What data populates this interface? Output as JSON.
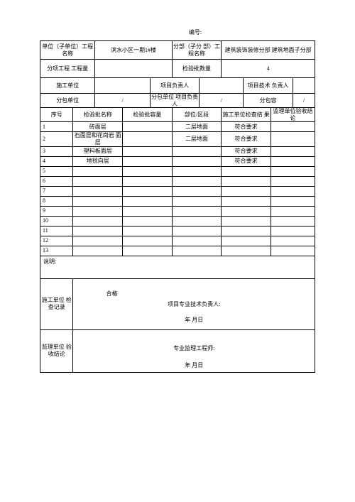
{
  "header": {
    "doc_number_label": "编号:"
  },
  "section1": {
    "unit_project_label": "单位（子单位）工程名称",
    "unit_project_value": "滨水小区一期1#楼",
    "sub_division_label": "分部（子分 部）工程名称",
    "sub_division_value": "建筑装饰装修分部 建筑地面子分部"
  },
  "section_qty": {
    "sub_item_qty_label": "分项工程 工程量",
    "sub_item_qty_value": "",
    "insp_batch_count_label": "检验批数量",
    "insp_batch_count_value": "4"
  },
  "section2": {
    "construct_unit_label": "施工单位",
    "construct_unit_value": "",
    "proj_leader_label": "项目负责人",
    "proj_leader_value": "",
    "tech_leader_label": "项目技术 负责人",
    "tech_leader_value": ""
  },
  "section3": {
    "subcontract_unit_label": "分包单位",
    "subcontract_slash1": "/",
    "subcontract_leader_label": "分包单位 项目负责人",
    "subcontract_slash2": "/",
    "subcontract_content_label": "分包容",
    "subcontract_slash3": "/"
  },
  "table": {
    "headers": {
      "seq": "序号",
      "batch_name": "检验批名称",
      "batch_capacity": "检验批容量",
      "section": "部位/区段",
      "construct_result": "施工单位检查结 果",
      "supervise_result": "监理单位验收结论"
    },
    "rows": [
      {
        "seq": "1",
        "name": "砖面层",
        "cap": "",
        "sec": "二层地面",
        "cr": "符合要求",
        "sr": ""
      },
      {
        "seq": "2",
        "name": "石面层和花岗岩 面层",
        "cap": "",
        "sec": "二层地面",
        "cr": "符合要求",
        "sr": ""
      },
      {
        "seq": "3",
        "name": "塑料板面层",
        "cap": "",
        "sec": "",
        "cr": "符合要求",
        "sr": ""
      },
      {
        "seq": "4",
        "name": "地毯向层",
        "cap": "",
        "sec": "",
        "cr": "符合要求",
        "sr": ""
      },
      {
        "seq": "5",
        "name": "",
        "cap": "",
        "sec": "",
        "cr": "",
        "sr": ""
      },
      {
        "seq": "6",
        "name": "",
        "cap": "",
        "sec": "",
        "cr": "",
        "sr": ""
      },
      {
        "seq": "7",
        "name": "",
        "cap": "",
        "sec": "",
        "cr": "",
        "sr": ""
      },
      {
        "seq": "8",
        "name": "",
        "cap": "",
        "sec": "",
        "cr": "",
        "sr": ""
      },
      {
        "seq": "9",
        "name": "",
        "cap": "",
        "sec": "",
        "cr": "",
        "sr": ""
      },
      {
        "seq": "10",
        "name": "",
        "cap": "",
        "sec": "",
        "cr": "",
        "sr": ""
      },
      {
        "seq": "11",
        "name": "",
        "cap": "",
        "sec": "",
        "cr": "",
        "sr": ""
      },
      {
        "seq": "12",
        "name": "",
        "cap": "",
        "sec": "",
        "cr": "",
        "sr": ""
      },
      {
        "seq": "13",
        "name": "",
        "cap": "",
        "sec": "",
        "cr": "",
        "sr": ""
      }
    ]
  },
  "description": {
    "label": "说明:"
  },
  "check_record": {
    "left_label": "施工单位 检查记录",
    "qualified": "合格",
    "responsible": "项目专业技术负责人:",
    "date": "年 月日"
  },
  "verify_conclusion": {
    "left_label": "监理单位 验收结论",
    "responsible": "专业监理工程师:",
    "date": "年 月日"
  }
}
